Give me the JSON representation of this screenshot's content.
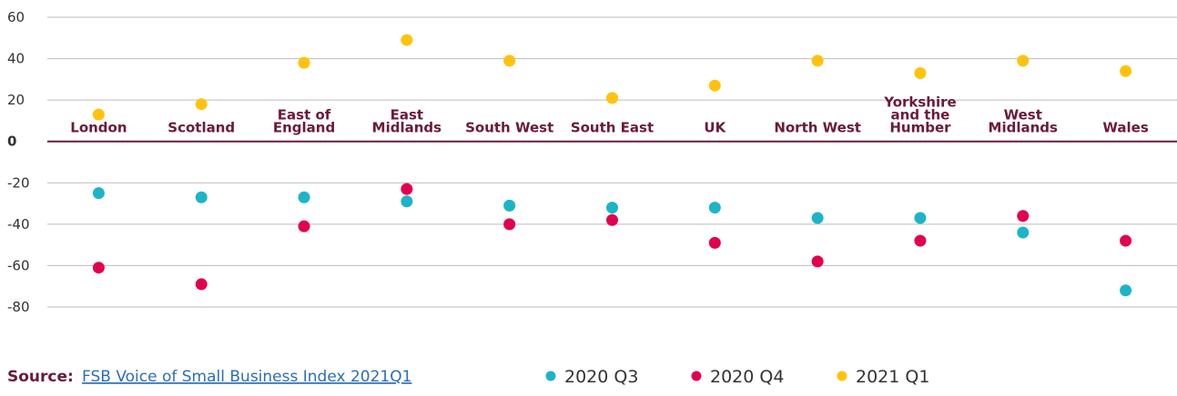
{
  "chart_data": {
    "type": "scatter",
    "categories": [
      "London",
      "Scotland",
      "East of\nEngland",
      "East\nMidlands",
      "South West",
      "South East",
      "UK",
      "North West",
      "Yorkshire\nand the\nHumber",
      "West\nMidlands",
      "Wales"
    ],
    "series": [
      {
        "name": "2020 Q3",
        "color": "#1db4c8",
        "values": [
          -25,
          -27,
          -27,
          -29,
          -31,
          -32,
          -32,
          -37,
          -37,
          -44,
          -72
        ]
      },
      {
        "name": "2020 Q4",
        "color": "#e2004f",
        "values": [
          -61,
          -69,
          -41,
          -23,
          -40,
          -38,
          -49,
          -58,
          -48,
          -36,
          -48
        ]
      },
      {
        "name": "2021 Q1",
        "color": "#ffc20e",
        "values": [
          13,
          18,
          38,
          49,
          39,
          21,
          27,
          39,
          33,
          39,
          34
        ]
      }
    ],
    "ylim": [
      -80,
      60
    ],
    "yticks": [
      -80,
      -60,
      -40,
      -20,
      0,
      20,
      40,
      60
    ],
    "grid": true,
    "source_label": "Source:",
    "source_text": "FSB Voice of Small Business Index 2021Q1"
  }
}
